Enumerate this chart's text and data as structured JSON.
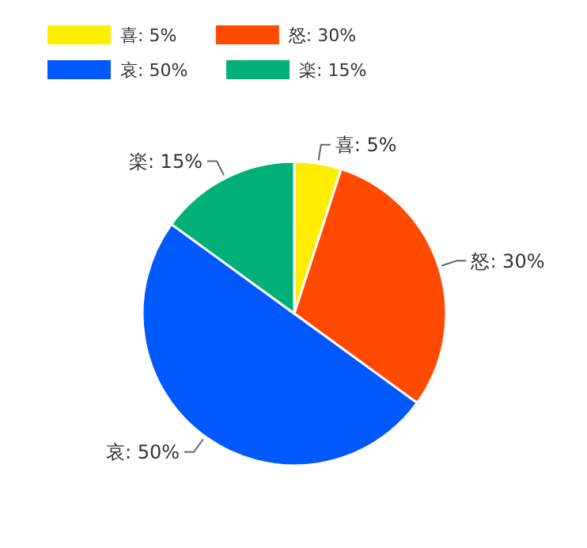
{
  "chart_data": {
    "type": "pie",
    "categories": [
      "喜",
      "怒",
      "哀",
      "楽"
    ],
    "values": [
      5,
      30,
      50,
      15
    ],
    "value_labels": [
      "5%",
      "30%",
      "50%",
      "15%"
    ],
    "colors": [
      "#ffee00",
      "#ff4a00",
      "#0059ff",
      "#00b077"
    ],
    "legend": "top left"
  }
}
